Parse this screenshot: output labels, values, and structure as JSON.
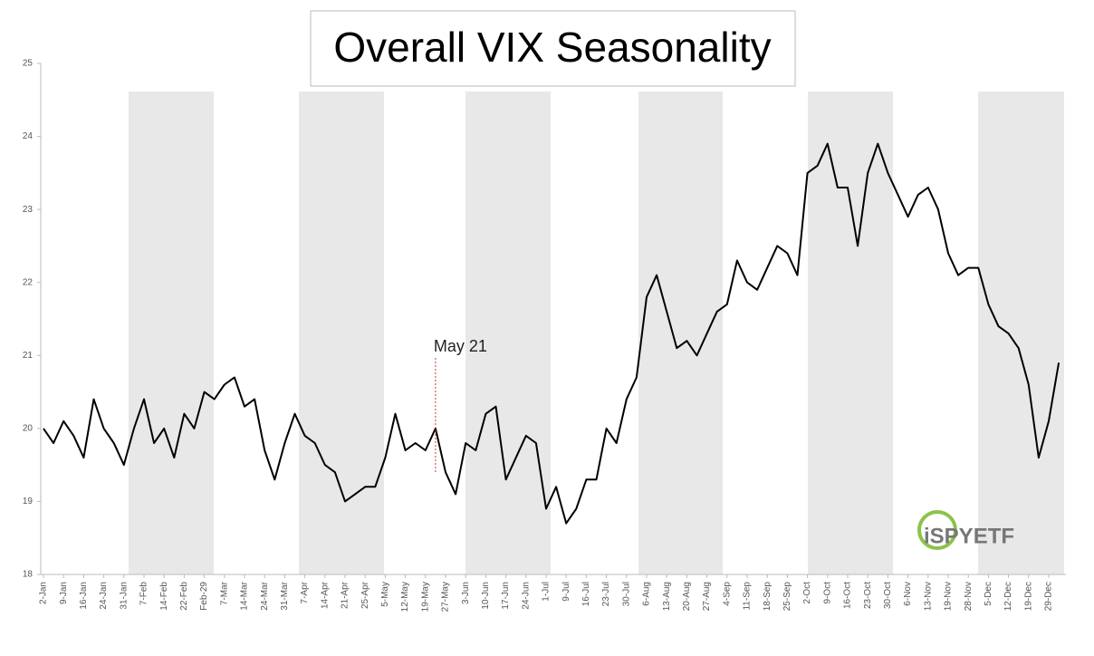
{
  "chart_data": {
    "type": "line",
    "title": "Overall VIX Seasonality",
    "categories": [
      "2-Jan",
      null,
      "9-Jan",
      null,
      "16-Jan",
      null,
      "24-Jan",
      null,
      "31-Jan",
      null,
      "7-Feb",
      null,
      "14-Feb",
      null,
      "22-Feb",
      null,
      "Feb-29",
      null,
      "7-Mar",
      null,
      "14-Mar",
      null,
      "24-Mar",
      null,
      "31-Mar",
      null,
      "7-Apr",
      null,
      "14-Apr",
      null,
      "21-Apr",
      null,
      "25-Apr",
      null,
      "5-May",
      null,
      "12-May",
      null,
      "19-May",
      null,
      "27-May",
      null,
      "3-Jun",
      null,
      "10-Jun",
      null,
      "17-Jun",
      null,
      "24-Jun",
      null,
      "1-Jul",
      null,
      "9-Jul",
      null,
      "16-Jul",
      null,
      "23-Jul",
      null,
      "30-Jul",
      null,
      "6-Aug",
      null,
      "13-Aug",
      null,
      "20-Aug",
      null,
      "27-Aug",
      null,
      "4-Sep",
      null,
      "11-Sep",
      null,
      "18-Sep",
      null,
      "25-Sep",
      null,
      "2-Oct",
      null,
      "9-Oct",
      null,
      "16-Oct",
      null,
      "23-Oct",
      null,
      "30-Oct",
      null,
      "6-Nov",
      null,
      "13-Nov",
      null,
      "19-Nov",
      null,
      "28-Nov",
      null,
      "5-Dec",
      null,
      "12-Dec",
      null,
      "19-Dec",
      null,
      "29-Dec",
      null
    ],
    "series": [
      {
        "name": "VIX",
        "color": "#000000",
        "values": [
          20.0,
          19.8,
          20.1,
          19.9,
          19.6,
          20.4,
          20.0,
          19.8,
          19.5,
          20.0,
          20.4,
          19.8,
          20.0,
          19.6,
          20.2,
          20.0,
          20.5,
          20.4,
          20.6,
          20.7,
          20.3,
          20.4,
          19.7,
          19.3,
          19.8,
          20.2,
          19.9,
          19.8,
          19.5,
          19.4,
          19.0,
          19.1,
          19.2,
          19.2,
          19.6,
          20.2,
          19.7,
          19.8,
          19.7,
          20.0,
          19.4,
          19.1,
          19.8,
          19.7,
          20.2,
          20.3,
          19.3,
          19.6,
          19.9,
          19.8,
          18.9,
          19.2,
          18.7,
          18.9,
          19.3,
          19.3,
          20.0,
          19.8,
          20.4,
          20.7,
          21.8,
          22.1,
          21.6,
          21.1,
          21.2,
          21.0,
          21.3,
          21.6,
          21.7,
          22.3,
          22.0,
          21.9,
          22.2,
          22.5,
          22.4,
          22.1,
          23.5,
          23.6,
          23.9,
          23.3,
          23.3,
          22.5,
          23.5,
          23.9,
          23.5,
          23.2,
          22.9,
          23.2,
          23.3,
          23.0,
          22.4,
          22.1,
          22.2,
          22.2,
          21.7,
          21.4,
          21.3,
          21.1,
          20.6,
          19.6,
          20.1,
          20.9
        ]
      }
    ],
    "ylim": [
      18,
      25
    ],
    "yticks": [
      18,
      19,
      20,
      21,
      22,
      23,
      24,
      25
    ],
    "annotation": "May 21",
    "watermark": "iSPYETF"
  }
}
